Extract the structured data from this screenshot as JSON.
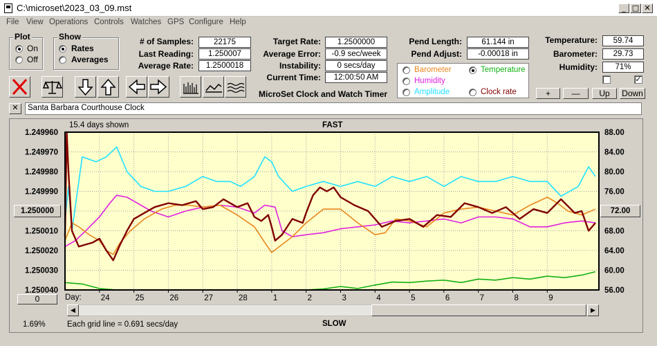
{
  "window": {
    "title": "C:\\microset\\2023_03_09.mst"
  },
  "menu": [
    "File",
    "View",
    "Operations",
    "Controls",
    "Watches",
    "GPS",
    "Configure",
    "Help"
  ],
  "plot_group": {
    "title": "Plot",
    "on_label": "On",
    "off_label": "Off",
    "selected": "On"
  },
  "show_group": {
    "title": "Show",
    "rates_label": "Rates",
    "averages_label": "Averages",
    "selected": "Rates"
  },
  "stats": {
    "samples_label": "# of Samples:",
    "samples": "22175",
    "last_reading_label": "Last Reading:",
    "last_reading": "1.250007",
    "average_rate_label": "Average Rate:",
    "average_rate": "1.2500018",
    "target_rate_label": "Target Rate:",
    "target_rate": "1.2500000",
    "average_error_label": "Average Error:",
    "average_error": "-0.9 sec/week",
    "instability_label": "Instability:",
    "instability": "0 secs/day",
    "current_time_label": "Current Time:",
    "current_time": "12:00:50 AM",
    "pend_length_label": "Pend Length:",
    "pend_length": "61.144 in",
    "pend_adjust_label": "Pend Adjust:",
    "pend_adjust": "-0.00018 in",
    "temperature_label": "Temperature:",
    "temperature": "59.74",
    "barometer_label": "Barometer:",
    "barometer": "29.73",
    "humidity_label": "Humidity:",
    "humidity": "71%"
  },
  "app_caption": "MicroSet Clock and Watch Timer",
  "legend": {
    "barometer": "Barometer",
    "temperature": "Temperature",
    "humidity": "Humidity",
    "amplitude": "Amplitude",
    "clock_rate": "Clock rate",
    "selected": "Temperature"
  },
  "scale_buttons": {
    "plus": "+",
    "minus": "—",
    "up": "Up",
    "down": "Down"
  },
  "watch_name": "Santa Barbara Courthouse Clock",
  "colors": {
    "barometer": "#e8871e",
    "temperature": "#12b012",
    "humidity": "#e020e0",
    "amplitude": "#20e0ff",
    "clock_rate": "#800000",
    "plot_bg": "#ffffcc"
  },
  "chart_data": {
    "type": "line",
    "top_label": "FAST",
    "bottom_label": "SLOW",
    "days_shown": "15.4 days shown",
    "grid_note": "Each grid line = 0.691 secs/day",
    "left_percent": "1.69%",
    "bottom_left_button": "0",
    "left_ticks": [
      "1.249960",
      "1.249970",
      "1.249980",
      "1.249990",
      "1.250000",
      "1.250010",
      "1.250020",
      "1.250030",
      "1.250040"
    ],
    "left_button": "1.250000",
    "right_ticks": [
      "88.00",
      "84.00",
      "80.00",
      "76.00",
      "72.00",
      "68.00",
      "64.00",
      "60.00",
      "56.00"
    ],
    "right_button": "72.00",
    "x_label": "Day:",
    "x_ticks": [
      "24",
      "25",
      "26",
      "27",
      "28",
      "1",
      "2",
      "3",
      "4",
      "5",
      "6",
      "7",
      "8",
      "9"
    ],
    "ylim_left": [
      1.24996,
      1.25004
    ],
    "ylim_right": [
      56,
      88
    ],
    "series": [
      {
        "name": "Amplitude",
        "color": "#20e0ff",
        "axis": "right",
        "x": [
          23.0,
          23.1,
          23.2,
          23.5,
          23.9,
          24.2,
          24.5,
          24.8,
          25.2,
          25.6,
          26.0,
          26.5,
          27.0,
          27.4,
          27.8,
          28.1,
          28.5,
          28.8,
          29.0,
          29.2,
          29.6,
          30.0,
          30.5,
          31.0,
          31.5,
          32.0,
          32.5,
          33.0,
          33.5,
          34.0,
          34.5,
          35.0,
          35.5,
          36.0,
          36.5,
          37.0,
          37.4,
          37.9,
          38.2,
          38.4
        ],
        "y": [
          70,
          77,
          68,
          83,
          82,
          83,
          85,
          80,
          77,
          76,
          76,
          77,
          79,
          78,
          78,
          77,
          79,
          83,
          82,
          79,
          76,
          77,
          78,
          77,
          78,
          77,
          79,
          78,
          79,
          77,
          79,
          78,
          78,
          79,
          78,
          78,
          75,
          77,
          81,
          79
        ]
      },
      {
        "name": "Humidity",
        "color": "#e020e0",
        "axis": "left",
        "x": [
          23.0,
          23.3,
          23.6,
          24.0,
          24.3,
          24.5,
          24.8,
          25.0,
          25.5,
          26.0,
          26.5,
          27.0,
          27.5,
          28.0,
          28.5,
          28.8,
          29.1,
          29.3,
          29.6,
          30.0,
          30.5,
          31.0,
          31.5,
          32.0,
          32.5,
          33.0,
          33.5,
          34.0,
          34.5,
          35.0,
          35.5,
          36.0,
          36.5,
          37.0,
          37.5,
          38.0,
          38.4
        ],
        "y": [
          1.250018,
          1.250015,
          1.25001,
          1.250003,
          1.249996,
          1.249992,
          1.249993,
          1.249995,
          1.25,
          1.250003,
          1.25,
          1.249998,
          1.249997,
          1.249998,
          1.250001,
          1.249997,
          1.249998,
          1.25001,
          1.250013,
          1.250012,
          1.250011,
          1.250009,
          1.250008,
          1.250007,
          1.250005,
          1.250006,
          1.250005,
          1.250004,
          1.250006,
          1.250003,
          1.250003,
          1.250004,
          1.250008,
          1.250008,
          1.250006,
          1.250005,
          1.250006
        ]
      },
      {
        "name": "Barometer",
        "color": "#e8871e",
        "axis": "left",
        "x": [
          23.0,
          23.2,
          23.4,
          23.7,
          24.0,
          24.2,
          24.4,
          24.6,
          24.9,
          25.3,
          25.8,
          26.2,
          26.6,
          27.0,
          27.5,
          28.0,
          28.5,
          28.8,
          29.0,
          29.3,
          29.6,
          30.0,
          30.5,
          31.0,
          31.5,
          32.0,
          32.3,
          32.6,
          33.0,
          33.5,
          34.0,
          34.5,
          35.0,
          35.5,
          36.0,
          36.5,
          37.0,
          37.3,
          37.6,
          38.0,
          38.4
        ],
        "y": [
          1.250015,
          1.250006,
          1.250008,
          1.250012,
          1.250015,
          1.25002,
          1.250022,
          1.250016,
          1.25001,
          1.250004,
          1.249999,
          1.249997,
          1.249997,
          1.249998,
          1.249997,
          1.250002,
          1.250008,
          1.250016,
          1.250021,
          1.250017,
          1.250013,
          1.250006,
          1.249999,
          1.249999,
          1.250006,
          1.250012,
          1.250011,
          1.250004,
          1.250005,
          1.250008,
          1.250001,
          1.249999,
          1.249998,
          1.25,
          1.250002,
          1.249997,
          1.249993,
          1.249996,
          1.25,
          1.250002,
          1.249999
        ]
      },
      {
        "name": "Temperature",
        "color": "#12b012",
        "axis": "right",
        "x": [
          23.0,
          23.5,
          24.0,
          24.5,
          25.0,
          26.0,
          27.0,
          28.0,
          29.0,
          29.5,
          30.0,
          30.5,
          31.0,
          31.5,
          32.0,
          32.5,
          33.0,
          33.5,
          34.0,
          34.5,
          35.0,
          35.5,
          36.0,
          36.5,
          37.0,
          37.5,
          38.0,
          38.4
        ],
        "y": [
          57.5,
          57.2,
          56.3,
          56.0,
          56.0,
          56.0,
          56.0,
          56.0,
          56.0,
          56.0,
          56.0,
          56.2,
          56.7,
          56.3,
          57.0,
          57.6,
          57.5,
          57.8,
          58.0,
          57.5,
          58.2,
          58.0,
          58.5,
          58.2,
          58.8,
          58.5,
          59.0,
          59.7
        ]
      },
      {
        "name": "Clock rate",
        "color": "#800000",
        "axis": "left",
        "x": [
          23.0,
          23.05,
          23.1,
          23.2,
          23.4,
          23.6,
          23.8,
          24.0,
          24.2,
          24.4,
          24.6,
          24.8,
          25.0,
          25.3,
          25.6,
          26.0,
          26.4,
          26.8,
          27.0,
          27.3,
          27.6,
          28.0,
          28.3,
          28.5,
          28.7,
          28.9,
          29.0,
          29.1,
          29.3,
          29.6,
          29.9,
          30.0,
          30.2,
          30.4,
          30.6,
          30.8,
          31.0,
          31.4,
          31.8,
          32.2,
          32.6,
          33.0,
          33.4,
          33.8,
          34.2,
          34.6,
          35.0,
          35.4,
          35.8,
          36.2,
          36.6,
          37.0,
          37.4,
          37.8,
          38.0,
          38.2,
          38.4
        ],
        "y": [
          1.250013,
          1.24996,
          1.24998,
          1.25001,
          1.250018,
          1.250017,
          1.250016,
          1.250014,
          1.25002,
          1.250025,
          1.250017,
          1.25001,
          1.250004,
          1.250001,
          1.249998,
          1.249996,
          1.249997,
          1.249995,
          1.249999,
          1.249998,
          1.249994,
          1.249998,
          1.249996,
          1.250003,
          1.250005,
          1.250002,
          1.250008,
          1.250015,
          1.250012,
          1.250004,
          1.250006,
          1.250001,
          1.249992,
          1.249988,
          1.24999,
          1.249988,
          1.249993,
          1.249997,
          1.25,
          1.250008,
          1.250005,
          1.250004,
          1.250008,
          1.250002,
          1.250003,
          1.249996,
          1.249998,
          1.250001,
          1.249998,
          1.250004,
          1.249999,
          1.250001,
          1.249994,
          1.250001,
          1.25,
          1.25001,
          1.250006
        ]
      }
    ]
  }
}
